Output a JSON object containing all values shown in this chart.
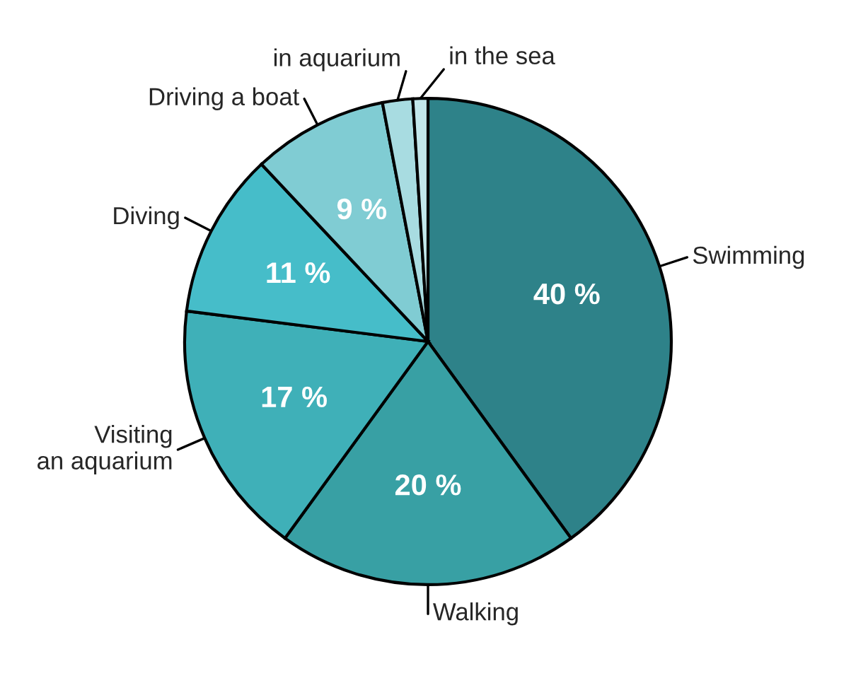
{
  "chart_data": {
    "type": "pie",
    "categories": [
      "Swimming",
      "Walking",
      "Visiting\nan aquarium",
      "Diving",
      "Driving a boat",
      "in aquarium",
      "in the sea"
    ],
    "values": [
      40,
      20,
      17,
      11,
      9,
      2,
      1
    ],
    "value_labels": [
      "40 %",
      "20 %",
      "17 %",
      "11 %",
      "9 %",
      null,
      null
    ],
    "colors": [
      "#2e8289",
      "#38a0a4",
      "#3fb0b8",
      "#46bdc9",
      "#80ccd3",
      "#a8dce1",
      "#c2e7eb"
    ],
    "legend": false
  }
}
